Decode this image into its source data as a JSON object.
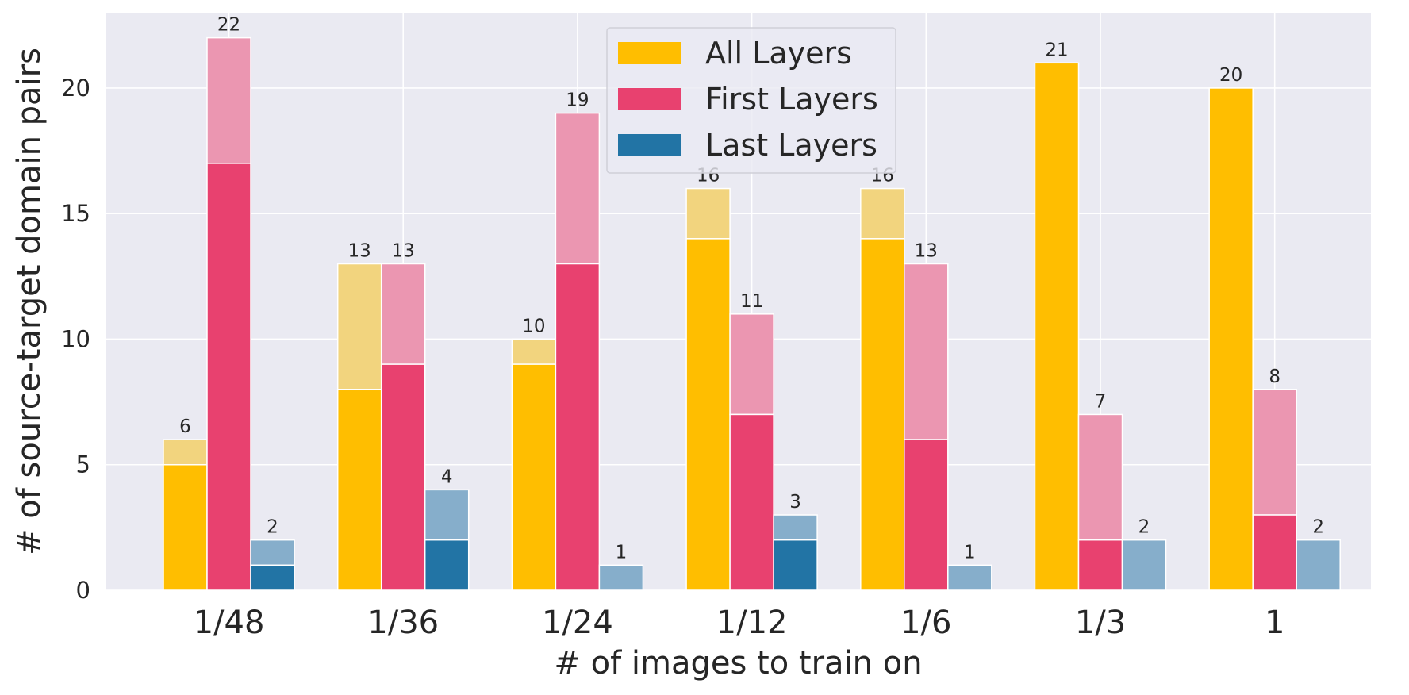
{
  "chart_data": {
    "type": "bar",
    "title": "",
    "xlabel": "# of images to train on",
    "ylabel": "# of source-target domain pairs",
    "categories": [
      "1/48",
      "1/36",
      "1/24",
      "1/12",
      "1/6",
      "1/3",
      "1"
    ],
    "ylim": [
      0,
      23
    ],
    "yticks": [
      0,
      5,
      10,
      15,
      20
    ],
    "grid": true,
    "legend_position": "top-center",
    "series": [
      {
        "name": "All Layers",
        "color": "#FFBE00",
        "light_color": "#F2D47E",
        "solid_values": [
          5,
          8,
          9,
          14,
          14,
          21,
          20
        ],
        "total_values": [
          6,
          13,
          10,
          16,
          16,
          21,
          20
        ],
        "total_labels": [
          "6",
          "13",
          "10",
          "16",
          "16",
          "21",
          "20"
        ]
      },
      {
        "name": "First Layers",
        "color": "#E8416F",
        "light_color": "#EB96B1",
        "solid_values": [
          17,
          9,
          13,
          7,
          6,
          2,
          3
        ],
        "total_values": [
          22,
          13,
          19,
          11,
          13,
          7,
          8
        ],
        "total_labels": [
          "22",
          "13",
          "19",
          "11",
          "13",
          "7",
          "8"
        ]
      },
      {
        "name": "Last Layers",
        "color": "#2274A5",
        "light_color": "#86AECB",
        "solid_values": [
          1,
          2,
          0,
          2,
          0,
          0,
          0
        ],
        "total_values": [
          2,
          4,
          1,
          3,
          1,
          2,
          2
        ],
        "total_labels": [
          "2",
          "4",
          "1",
          "3",
          "1",
          "2",
          "2"
        ]
      }
    ]
  }
}
